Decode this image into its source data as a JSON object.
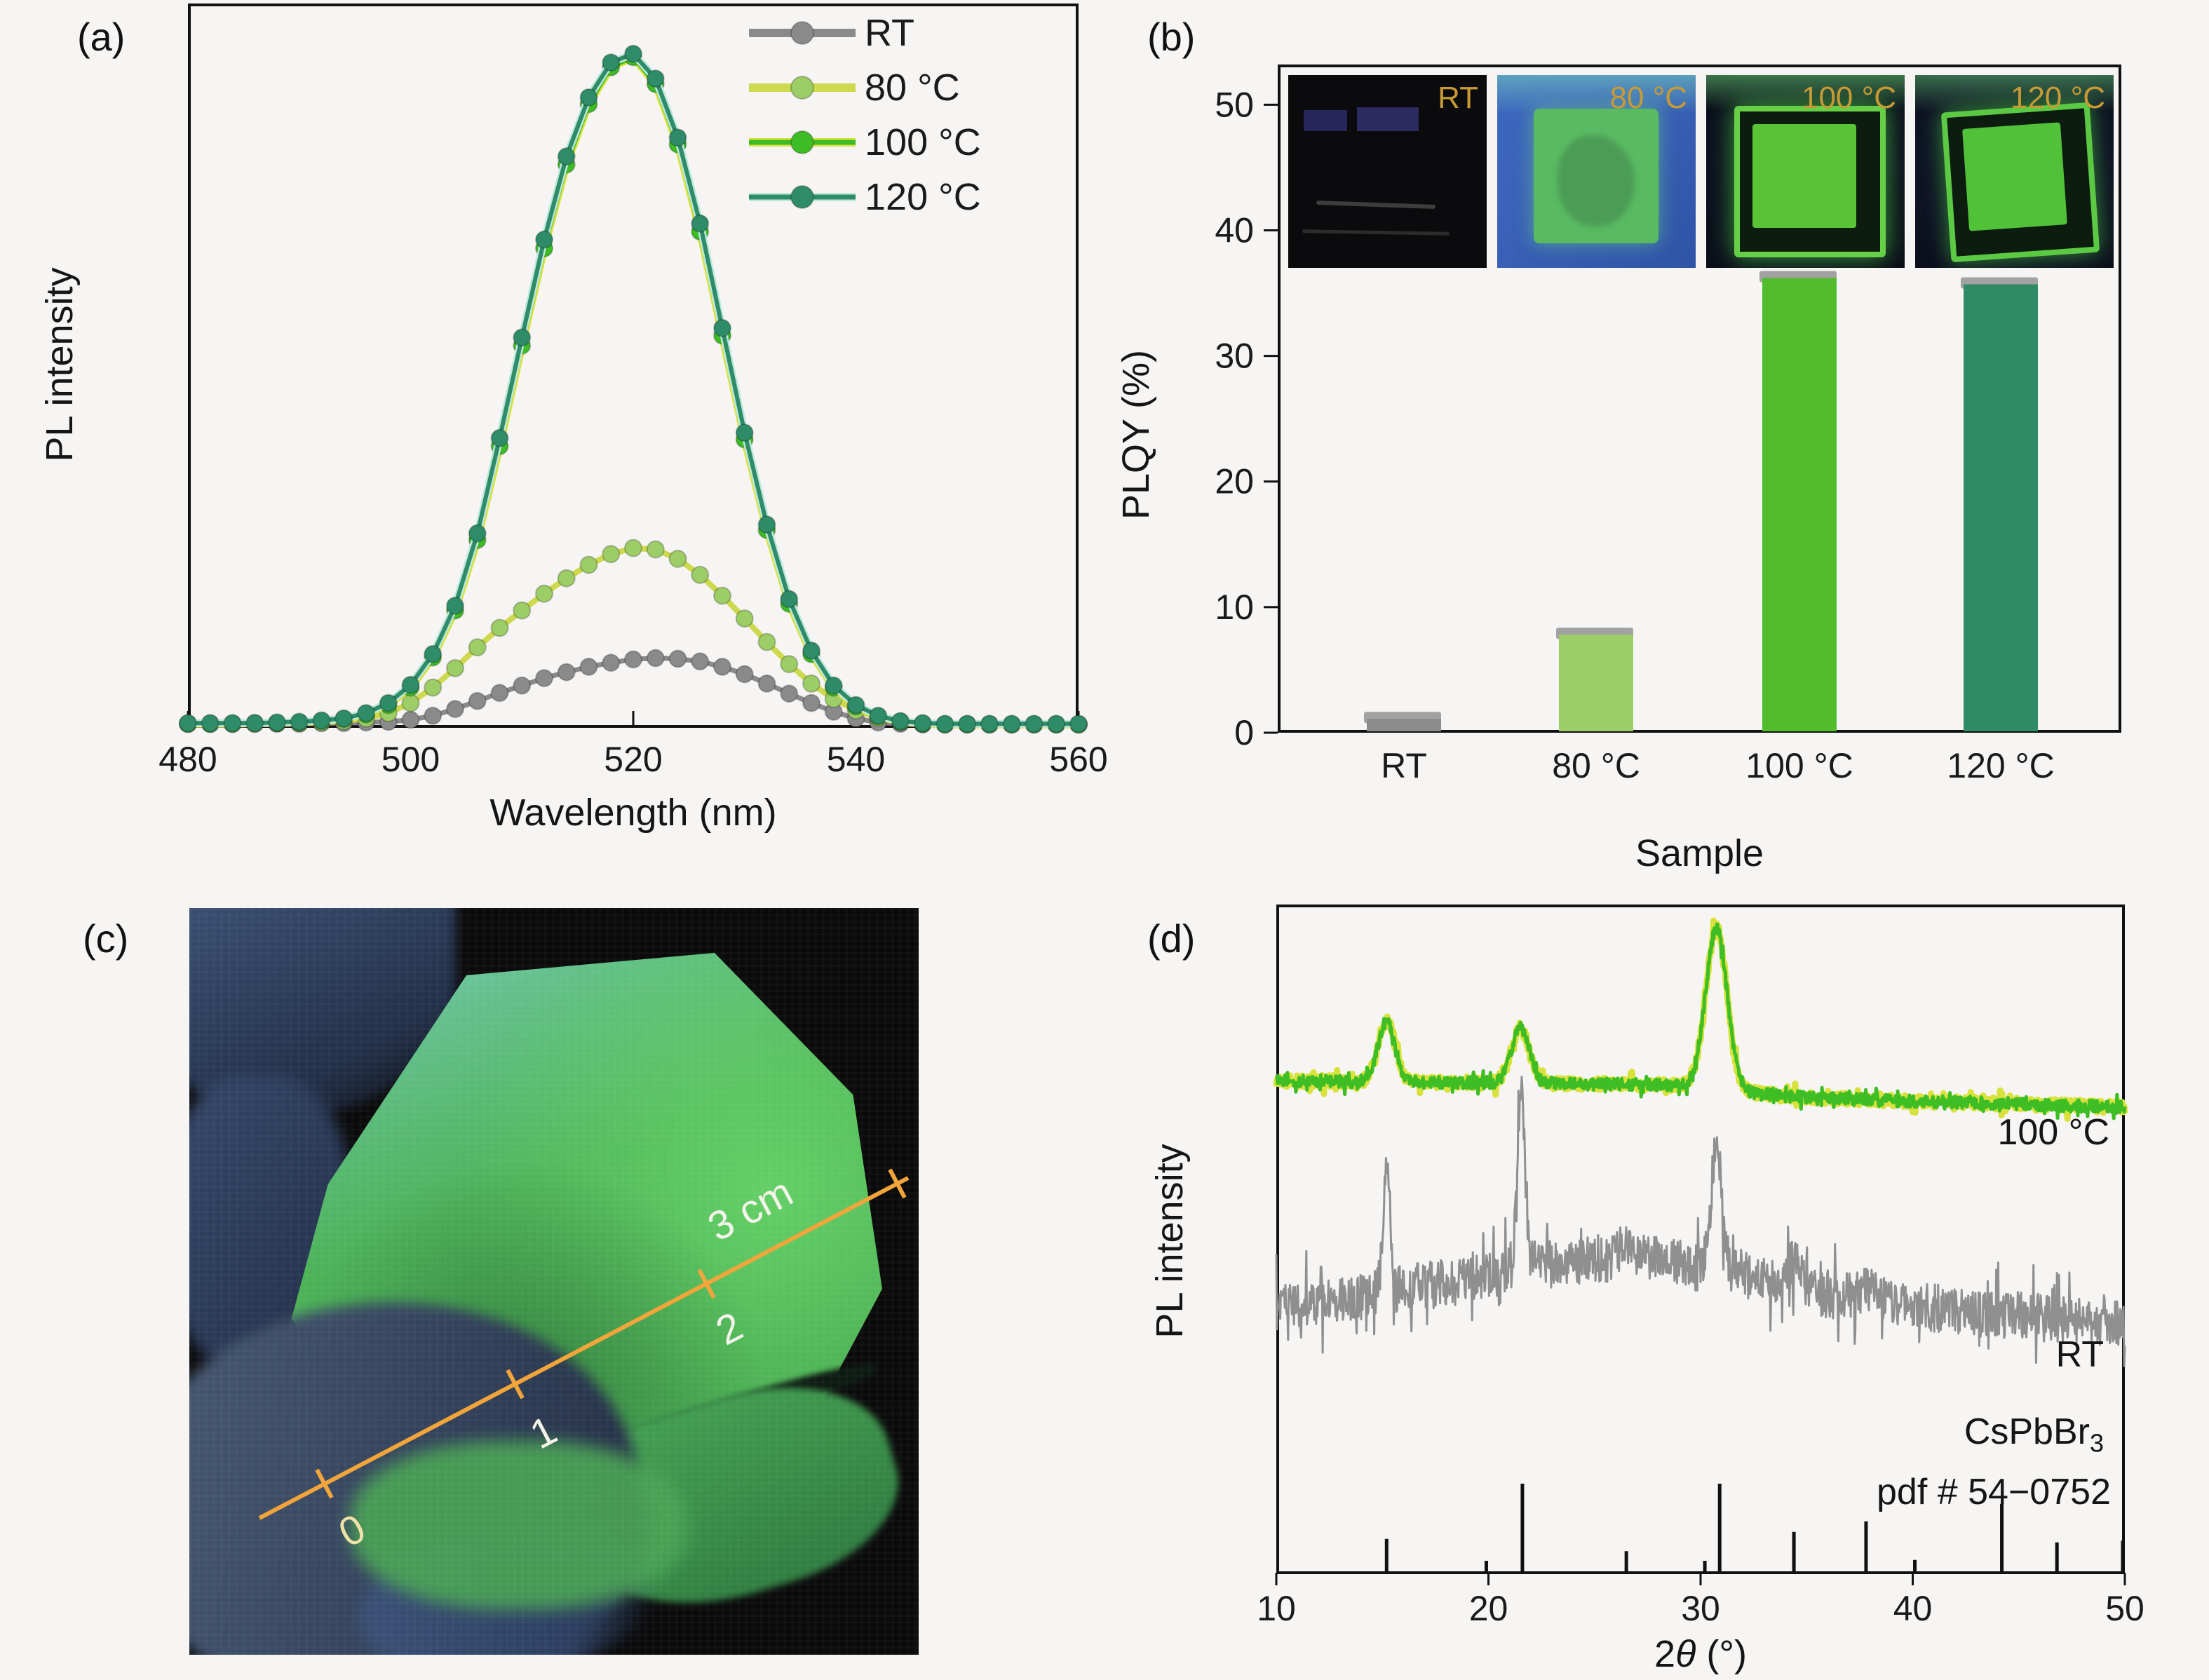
{
  "figure": {
    "bg": "#f6f5f3",
    "axis_color": "#111111",
    "text_color": "#1a1a1a"
  },
  "panels": {
    "a": {
      "label": "(a)",
      "xlabel": "Wavelength (nm)",
      "ylabel": "PL intensity"
    },
    "b": {
      "label": "(b)",
      "xlabel": "Sample",
      "ylabel": "PLQY (%)"
    },
    "c": {
      "label": "(c)",
      "ruler": {
        "color": "#f2a53a",
        "labels": [
          "0",
          "1",
          "2",
          "3 cm"
        ]
      }
    },
    "d": {
      "label": "(d)",
      "xlabel_prefix": "2",
      "xlabel_italic": "θ",
      "xlabel_suffix": " (°)",
      "ylabel": "PL intensity",
      "annotations": {
        "trace_top": "100 °C",
        "trace_bottom": "RT",
        "reference_formula": "CsPbBr",
        "reference_formula_sub": "3",
        "reference_card": "pdf # 54−0752"
      }
    }
  },
  "chart_data": [
    {
      "id": "a",
      "type": "line",
      "title": "",
      "xlabel": "Wavelength (nm)",
      "ylabel": "PL intensity",
      "xlim": [
        480,
        560
      ],
      "ylim": [
        0,
        1.08
      ],
      "xticks": [
        480,
        500,
        520,
        540,
        560
      ],
      "grid": false,
      "legend_position": "top-right",
      "x": [
        480,
        482,
        484,
        486,
        488,
        490,
        492,
        494,
        496,
        498,
        500,
        502,
        504,
        506,
        508,
        510,
        512,
        514,
        516,
        518,
        520,
        522,
        524,
        526,
        528,
        530,
        532,
        534,
        536,
        538,
        540,
        542,
        544,
        546,
        548,
        550,
        552,
        554,
        556,
        558,
        560
      ],
      "series": [
        {
          "name": "RT",
          "line_color": "#8a8a8a",
          "halo_color": "#8a8a8a",
          "halo_width": 7,
          "marker_color": "#8a8a8a",
          "y": [
            0.006,
            0.006,
            0.006,
            0.006,
            0.006,
            0.006,
            0.007,
            0.007,
            0.008,
            0.009,
            0.012,
            0.018,
            0.028,
            0.04,
            0.052,
            0.063,
            0.074,
            0.083,
            0.091,
            0.097,
            0.102,
            0.104,
            0.103,
            0.099,
            0.091,
            0.08,
            0.066,
            0.051,
            0.037,
            0.024,
            0.014,
            0.008,
            0.006,
            0.005,
            0.005,
            0.005,
            0.005,
            0.005,
            0.005,
            0.005,
            0.005
          ]
        },
        {
          "name": "80 °C",
          "line_color": "#cdd94e",
          "halo_color": "#cdd94e",
          "halo_width": 8,
          "marker_color": "#9ccd66",
          "y": [
            0.006,
            0.006,
            0.006,
            0.006,
            0.007,
            0.007,
            0.008,
            0.01,
            0.014,
            0.022,
            0.037,
            0.06,
            0.089,
            0.12,
            0.149,
            0.175,
            0.2,
            0.223,
            0.243,
            0.259,
            0.268,
            0.266,
            0.252,
            0.228,
            0.197,
            0.163,
            0.128,
            0.095,
            0.066,
            0.043,
            0.026,
            0.015,
            0.009,
            0.006,
            0.005,
            0.005,
            0.005,
            0.005,
            0.005,
            0.005,
            0.005
          ]
        },
        {
          "name": "100 °C",
          "line_color": "#3ebc26",
          "halo_color": "#d9e23c",
          "halo_width": 11,
          "marker_color": "#3ebc26",
          "y": [
            0.006,
            0.006,
            0.006,
            0.007,
            0.007,
            0.008,
            0.01,
            0.013,
            0.02,
            0.034,
            0.06,
            0.105,
            0.175,
            0.28,
            0.42,
            0.57,
            0.715,
            0.84,
            0.93,
            0.985,
            1.0,
            0.96,
            0.87,
            0.74,
            0.585,
            0.43,
            0.295,
            0.185,
            0.11,
            0.06,
            0.032,
            0.017,
            0.009,
            0.006,
            0.005,
            0.005,
            0.005,
            0.005,
            0.005,
            0.005,
            0.005
          ]
        },
        {
          "name": "120 °C",
          "line_color": "#2e8c68",
          "halo_color": "#bfe8dd",
          "halo_width": 11,
          "marker_color": "#2e8c68",
          "y": [
            0.007,
            0.007,
            0.007,
            0.007,
            0.008,
            0.009,
            0.011,
            0.014,
            0.022,
            0.037,
            0.064,
            0.11,
            0.182,
            0.29,
            0.432,
            0.582,
            0.728,
            0.852,
            0.94,
            0.992,
            1.005,
            0.968,
            0.88,
            0.752,
            0.596,
            0.44,
            0.303,
            0.192,
            0.115,
            0.063,
            0.034,
            0.018,
            0.01,
            0.007,
            0.006,
            0.006,
            0.006,
            0.006,
            0.006,
            0.006,
            0.006
          ]
        }
      ]
    },
    {
      "id": "b",
      "type": "bar",
      "title": "",
      "xlabel": "Sample",
      "ylabel": "PLQY (%)",
      "categories": [
        "RT",
        "80 °C",
        "100 °C",
        "120 °C"
      ],
      "values": [
        1.1,
        7.8,
        36.2,
        35.7
      ],
      "bar_colors": [
        "#8c8c8c",
        "#9ccd66",
        "#52bd2a",
        "#2e8b66"
      ],
      "cap_color": "#a2a2a2",
      "ylim": [
        0,
        53.2
      ],
      "yticks": [
        0,
        10,
        20,
        30,
        40,
        50
      ],
      "inset_label_color": "#c79a36",
      "inset_photos": [
        {
          "label": "RT"
        },
        {
          "label": "80 °C"
        },
        {
          "label": "100 °C"
        },
        {
          "label": "120 °C"
        }
      ]
    },
    {
      "id": "d",
      "type": "line",
      "subtype": "xrd-pattern",
      "title": "",
      "xlabel": "2θ (°)",
      "ylabel": "PL intensity",
      "xlim": [
        10,
        50
      ],
      "xticks": [
        10,
        20,
        30,
        40,
        50
      ],
      "traces": [
        {
          "name": "100 °C",
          "color": "#3ebe24",
          "under_color": "#d9e23c",
          "noise": 0.009,
          "baseline": [
            [
              10,
              0.737
            ],
            [
              20,
              0.734
            ],
            [
              30,
              0.73
            ],
            [
              32,
              0.72
            ],
            [
              34,
              0.714
            ],
            [
              38,
              0.708
            ],
            [
              44,
              0.703
            ],
            [
              50,
              0.697
            ]
          ],
          "peaks": [
            {
              "x": 15.2,
              "h": 0.09,
              "w": 0.4
            },
            {
              "x": 21.5,
              "h": 0.082,
              "w": 0.42
            },
            {
              "x": 30.75,
              "h": 0.238,
              "w": 0.5
            }
          ]
        },
        {
          "name": "RT",
          "color": "#8f8f8f",
          "under_color": null,
          "noise": 0.036,
          "baseline": [
            [
              10,
              0.4
            ],
            [
              13,
              0.41
            ],
            [
              16,
              0.425
            ],
            [
              19,
              0.44
            ],
            [
              22,
              0.462
            ],
            [
              25,
              0.472
            ],
            [
              28,
              0.468
            ],
            [
              30,
              0.458
            ],
            [
              32,
              0.448
            ],
            [
              34,
              0.432
            ],
            [
              36,
              0.418
            ],
            [
              40,
              0.4
            ],
            [
              44,
              0.388
            ],
            [
              47,
              0.38
            ],
            [
              50,
              0.372
            ]
          ],
          "peaks": [
            {
              "x": 15.2,
              "h": 0.185,
              "w": 0.17
            },
            {
              "x": 21.55,
              "h": 0.262,
              "w": 0.18
            },
            {
              "x": 30.75,
              "h": 0.186,
              "w": 0.24
            },
            {
              "x": 26.6,
              "h": 0.028,
              "w": 0.3
            },
            {
              "x": 34.4,
              "h": 0.035,
              "w": 0.3
            },
            {
              "x": 37.8,
              "h": 0.02,
              "w": 0.3
            }
          ]
        }
      ],
      "reference": {
        "name": "CsPbBr3",
        "card": "pdf # 54−0752",
        "color": "#111111",
        "peaks": [
          [
            15.2,
            0.37
          ],
          [
            19.9,
            0.12
          ],
          [
            21.6,
            1.0
          ],
          [
            26.5,
            0.23
          ],
          [
            30.2,
            0.12
          ],
          [
            30.9,
            1.0
          ],
          [
            34.4,
            0.45
          ],
          [
            37.8,
            0.57
          ],
          [
            40.1,
            0.13
          ],
          [
            44.2,
            0.77
          ],
          [
            46.8,
            0.33
          ],
          [
            49.9,
            0.35
          ]
        ]
      }
    }
  ]
}
